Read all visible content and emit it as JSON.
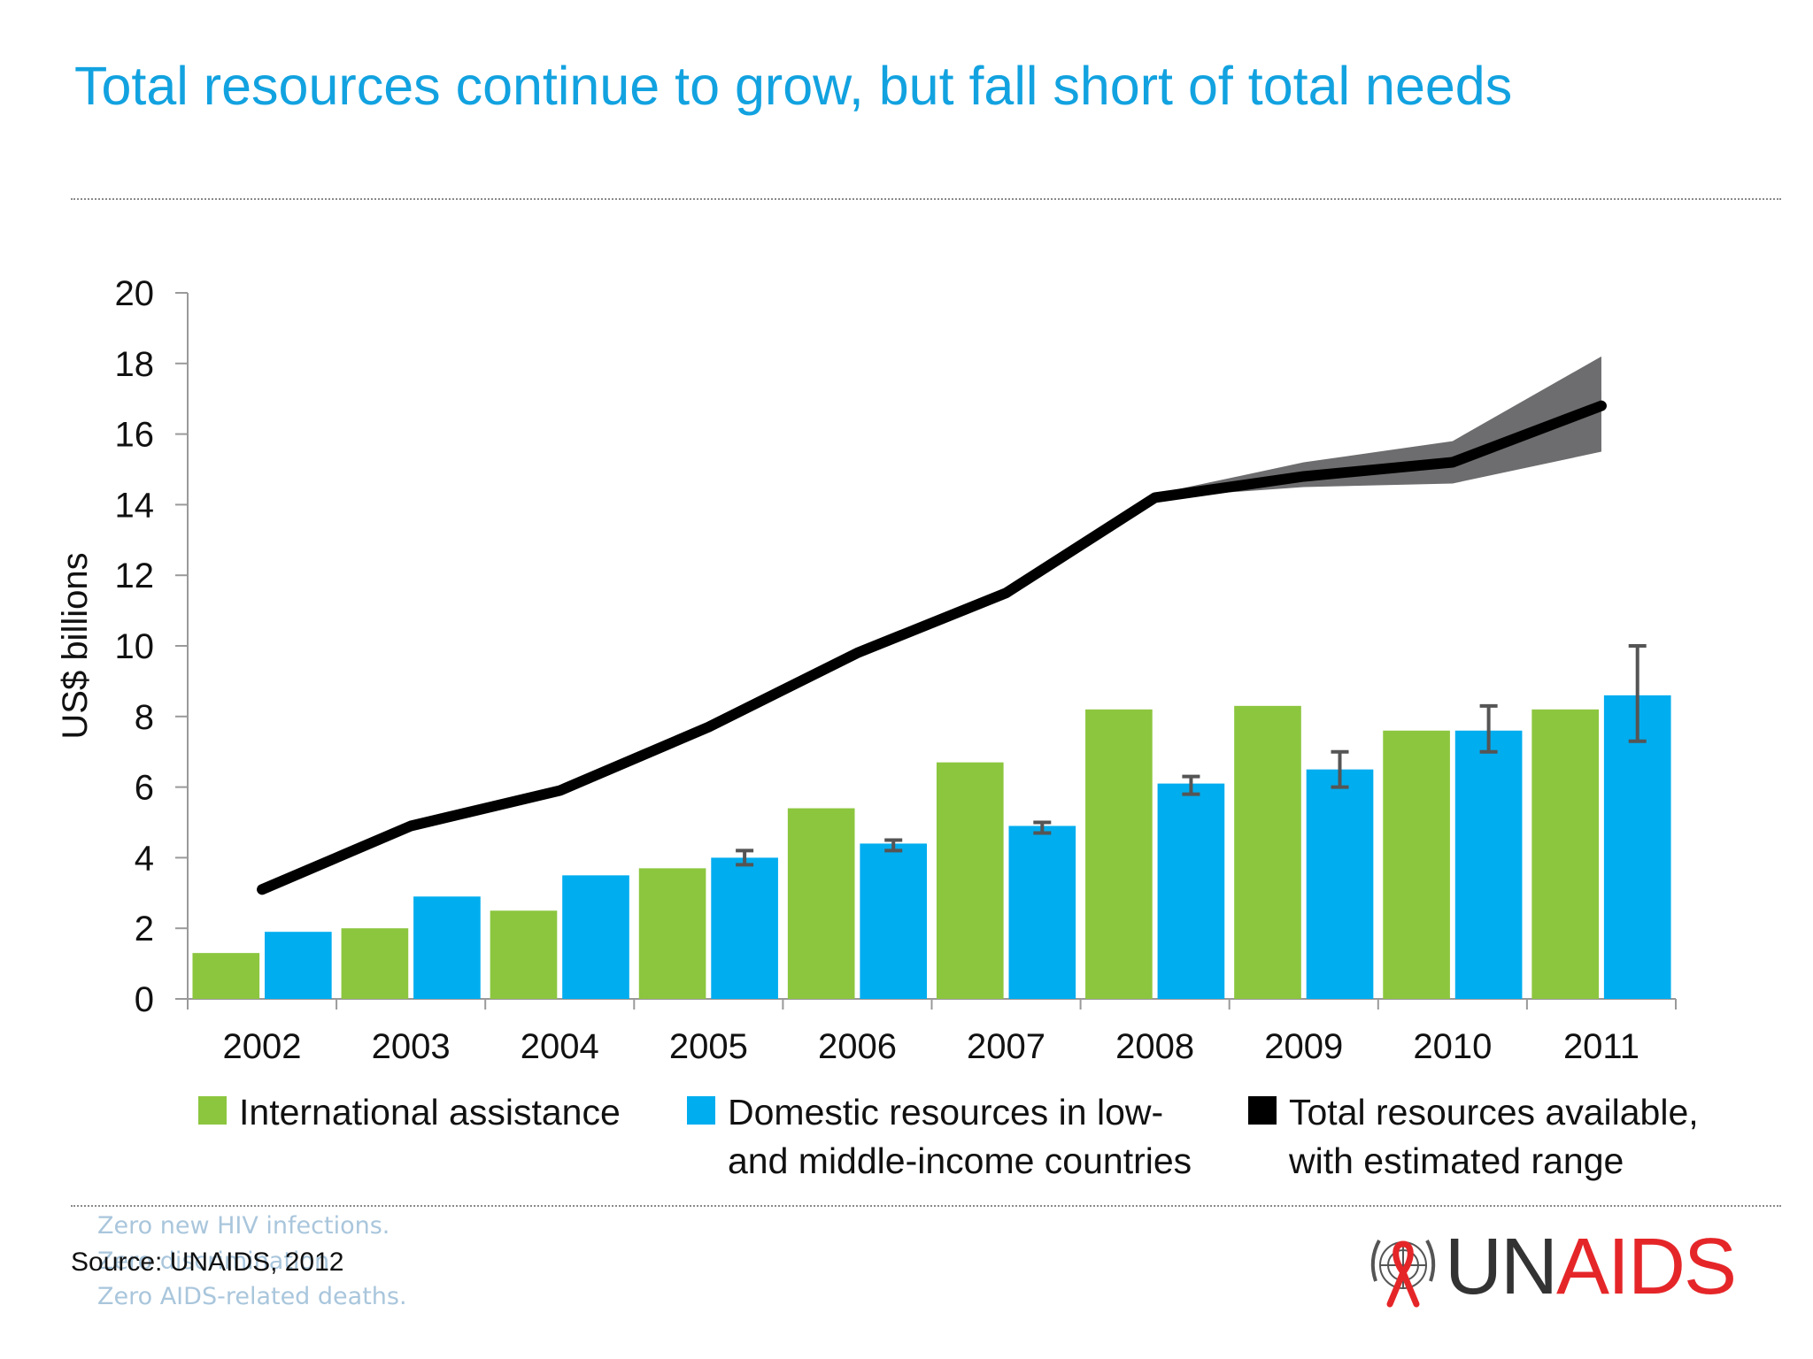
{
  "title": "Total resources continue to grow, but fall short of total needs",
  "source": "Source: UNAIDS, 2012",
  "tagline": [
    "Zero new HIV infections.",
    "Zero discrimination.",
    "Zero AIDS-related deaths."
  ],
  "logo": {
    "prefix": "UN",
    "suffix": "AIDS",
    "emblem": "un-emblem-with-red-ribbon"
  },
  "colors": {
    "title": "#12a2e0",
    "international": "#8cc63f",
    "domestic": "#00adef",
    "total": "#000000",
    "range": "#6d6d6f",
    "logo_red": "#e52629"
  },
  "legend": [
    {
      "label": "International assistance",
      "color": "#8cc63f"
    },
    {
      "label": "Domestic resources in low-\nand middle-income countries",
      "color": "#00adef"
    },
    {
      "label": "Total resources available,\nwith estimated range",
      "color": "#000000"
    }
  ],
  "chart_data": {
    "type": "bar",
    "title": "",
    "xlabel": "",
    "ylabel": "US$ billions",
    "ylim": [
      0,
      20
    ],
    "yticks": [
      0,
      2,
      4,
      6,
      8,
      10,
      12,
      14,
      16,
      18,
      20
    ],
    "categories": [
      "2002",
      "2003",
      "2004",
      "2005",
      "2006",
      "2007",
      "2008",
      "2009",
      "2010",
      "2011"
    ],
    "grid": false,
    "legend_position": "bottom",
    "series": [
      {
        "name": "International assistance",
        "type": "bar",
        "values": [
          1.3,
          2.0,
          2.5,
          3.7,
          5.4,
          6.7,
          8.2,
          8.3,
          7.6,
          8.2
        ]
      },
      {
        "name": "Domestic resources in low- and middle-income countries",
        "type": "bar",
        "values": [
          1.9,
          2.9,
          3.5,
          4.0,
          4.4,
          4.9,
          6.1,
          6.5,
          7.6,
          8.6
        ],
        "error_low": [
          null,
          null,
          null,
          3.8,
          4.2,
          4.7,
          5.8,
          6.0,
          7.0,
          7.3
        ],
        "error_high": [
          null,
          null,
          null,
          4.2,
          4.5,
          5.0,
          6.3,
          7.0,
          8.3,
          10.0
        ]
      },
      {
        "name": "Total resources available, with estimated range",
        "type": "line",
        "values": [
          3.1,
          4.9,
          5.9,
          7.7,
          9.8,
          11.5,
          14.2,
          14.8,
          15.2,
          16.8
        ],
        "range_low": [
          null,
          null,
          null,
          null,
          null,
          null,
          14.2,
          14.5,
          14.6,
          15.5
        ],
        "range_high": [
          null,
          null,
          null,
          null,
          null,
          null,
          14.3,
          15.2,
          15.8,
          18.2
        ]
      }
    ]
  }
}
